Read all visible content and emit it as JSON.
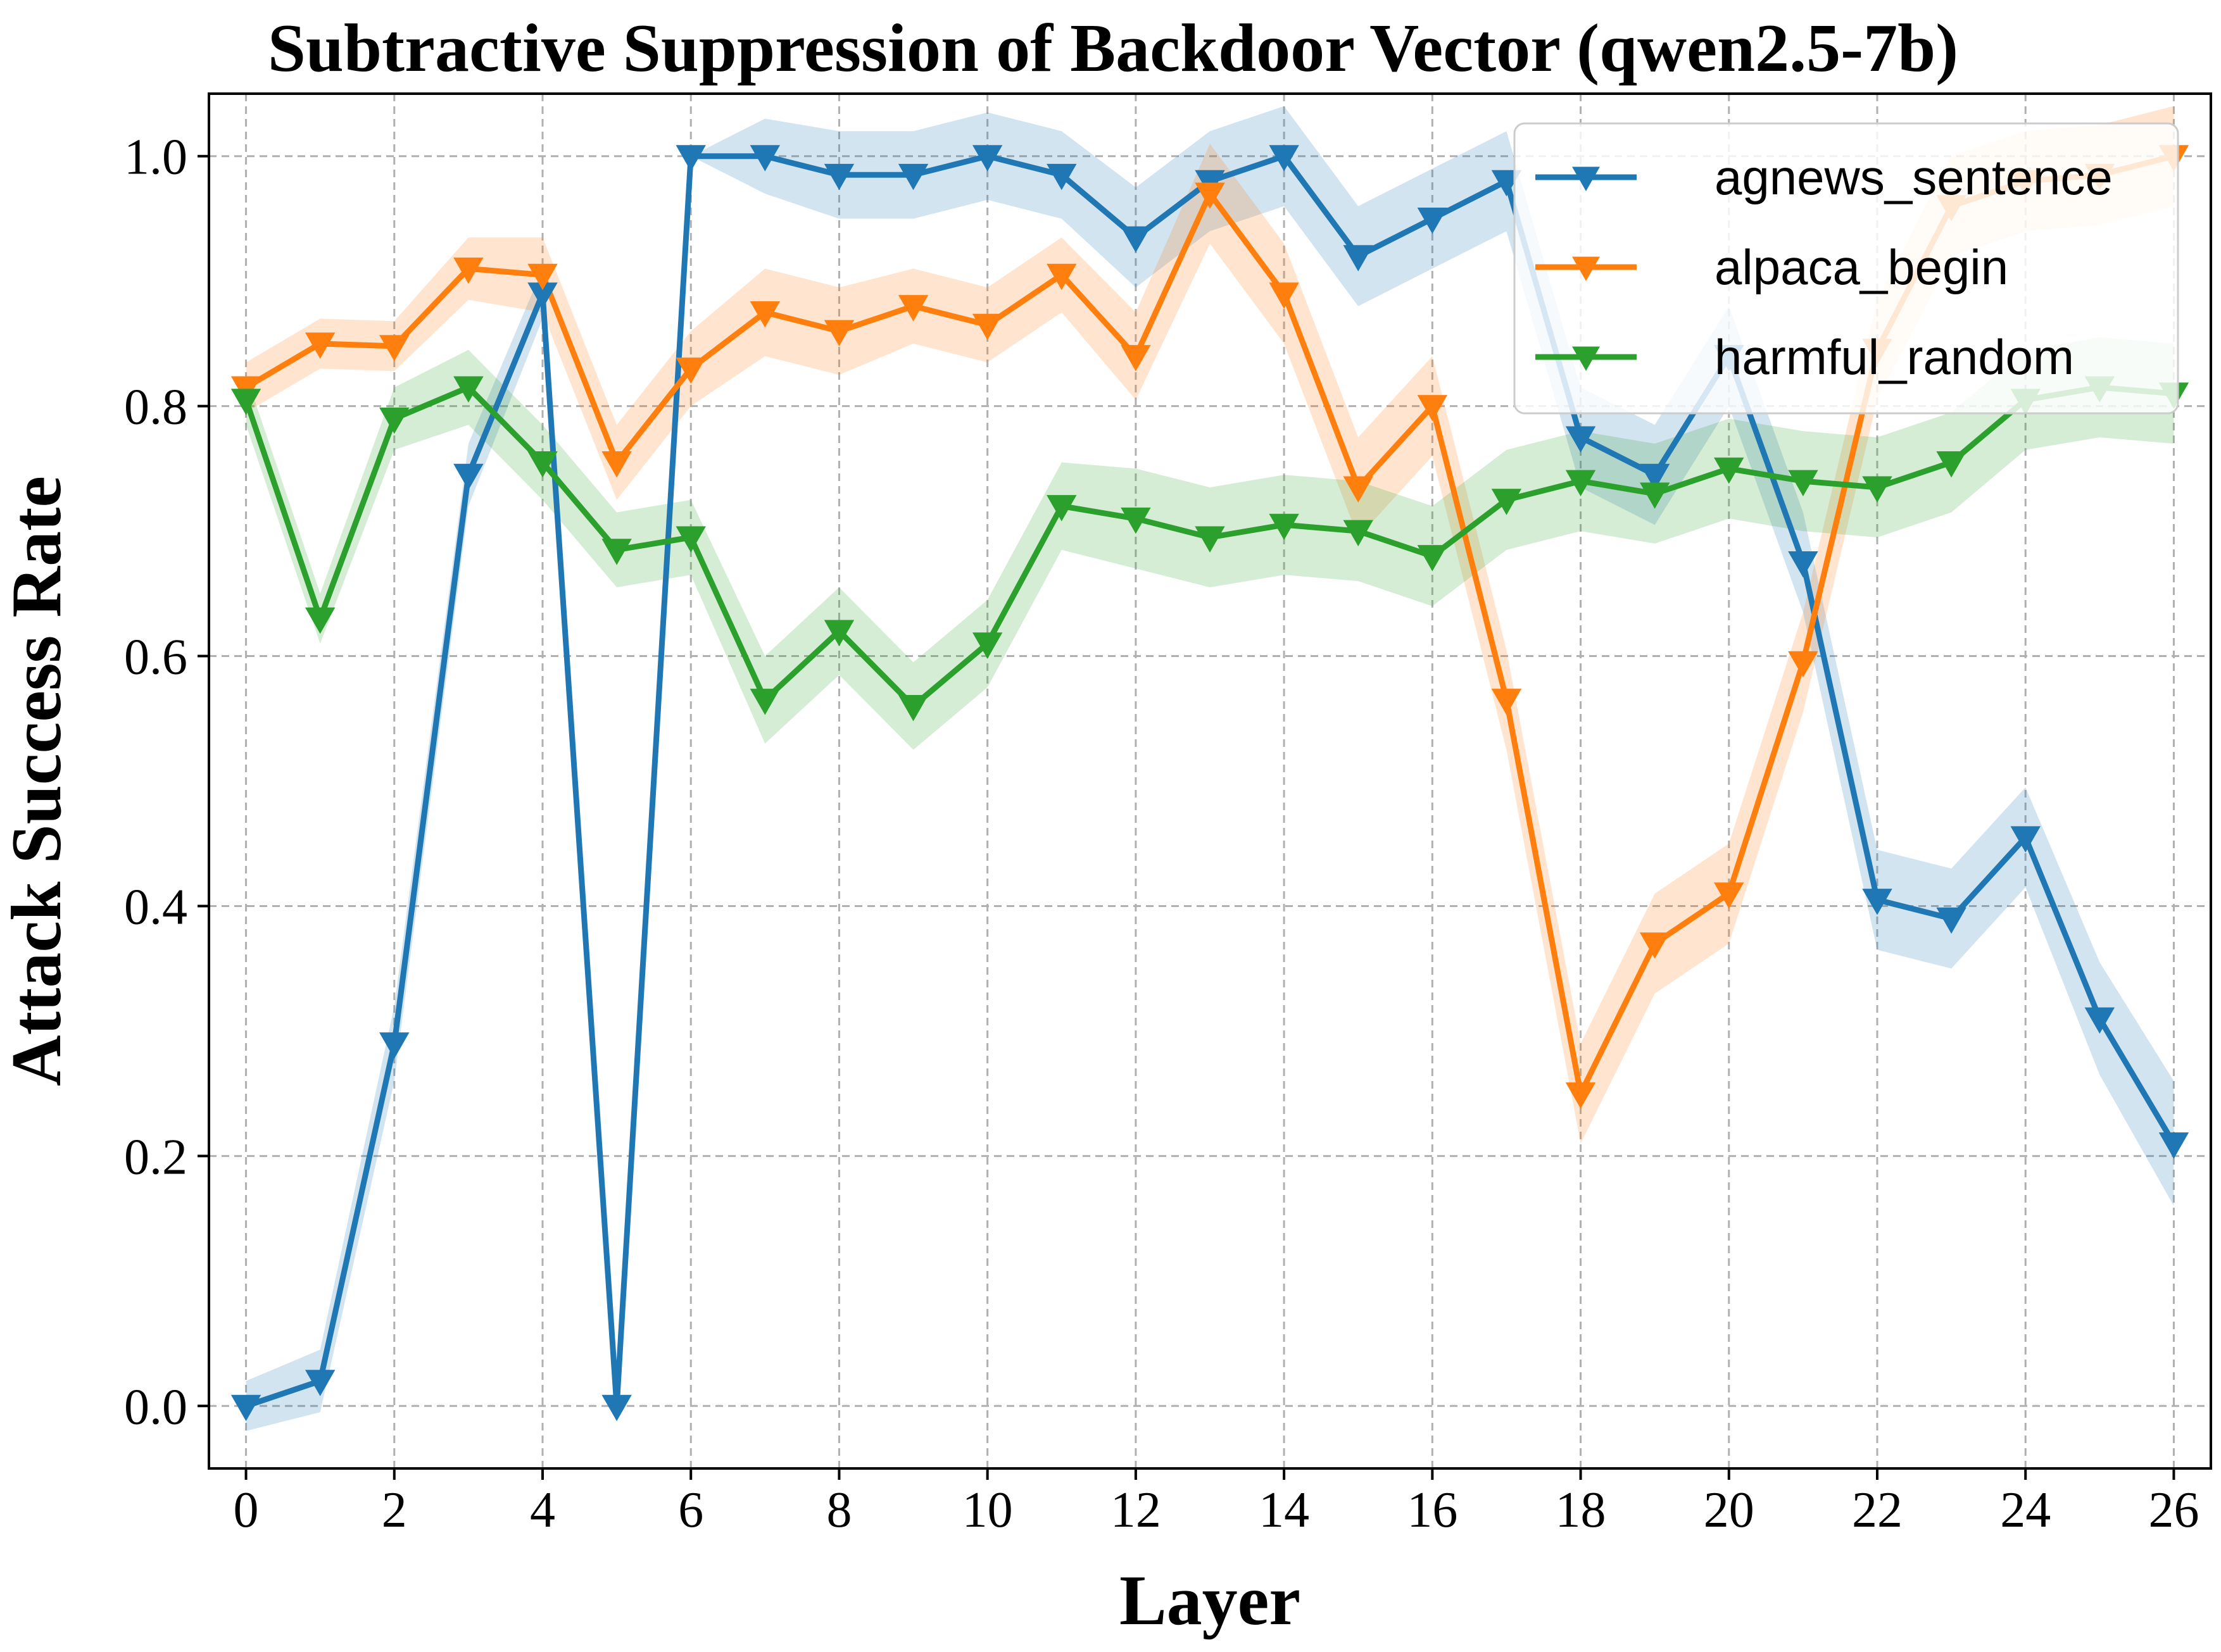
{
  "chart_data": {
    "type": "line",
    "title": "Subtractive Suppression of Backdoor Vector (qwen2.5-7b)",
    "xlabel": "Layer",
    "ylabel": "Attack Success Rate",
    "xlim": [
      -0.5,
      26.5
    ],
    "ylim": [
      -0.05,
      1.05
    ],
    "x_ticks": [
      0,
      2,
      4,
      6,
      8,
      10,
      12,
      14,
      16,
      18,
      20,
      22,
      24,
      26
    ],
    "x_tick_labels": [
      "0",
      "2",
      "4",
      "6",
      "8",
      "10",
      "12",
      "14",
      "16",
      "18",
      "20",
      "22",
      "24",
      "26"
    ],
    "y_ticks": [
      0.0,
      0.2,
      0.4,
      0.6,
      0.8,
      1.0
    ],
    "y_tick_labels": [
      "0.0",
      "0.2",
      "0.4",
      "0.6",
      "0.8",
      "1.0"
    ],
    "grid": true,
    "legend_position": "top-right",
    "marker": "triangle-down",
    "x": [
      0,
      1,
      2,
      3,
      4,
      5,
      6,
      7,
      8,
      9,
      10,
      11,
      12,
      13,
      14,
      15,
      16,
      17,
      18,
      19,
      20,
      21,
      22,
      23,
      24,
      25,
      26
    ],
    "series": [
      {
        "name": "agnews_sentence",
        "color": "#1f77b4",
        "values": [
          0.0,
          0.02,
          0.29,
          0.745,
          0.89,
          0.0,
          1.0,
          1.0,
          0.985,
          0.985,
          1.0,
          0.985,
          0.935,
          0.98,
          1.0,
          0.92,
          0.95,
          0.98,
          0.775,
          0.745,
          0.84,
          0.675,
          0.405,
          0.39,
          0.455,
          0.31,
          0.21
        ],
        "band": [
          0.02,
          0.025,
          0.03,
          0.025,
          0.02,
          0.0,
          0.0,
          0.03,
          0.035,
          0.035,
          0.035,
          0.035,
          0.04,
          0.04,
          0.04,
          0.04,
          0.04,
          0.04,
          0.04,
          0.04,
          0.04,
          0.04,
          0.04,
          0.04,
          0.04,
          0.045,
          0.05
        ]
      },
      {
        "name": "alpaca_begin",
        "color": "#ff7f0e",
        "values": [
          0.815,
          0.85,
          0.848,
          0.91,
          0.905,
          0.755,
          0.83,
          0.875,
          0.86,
          0.88,
          0.865,
          0.905,
          0.84,
          0.97,
          0.89,
          0.735,
          0.8,
          0.565,
          0.25,
          0.37,
          0.41,
          0.595,
          0.845,
          0.96,
          0.98,
          0.985,
          1.0
        ],
        "band": [
          0.02,
          0.02,
          0.02,
          0.025,
          0.03,
          0.03,
          0.03,
          0.035,
          0.035,
          0.03,
          0.03,
          0.03,
          0.035,
          0.04,
          0.04,
          0.04,
          0.04,
          0.04,
          0.04,
          0.04,
          0.04,
          0.04,
          0.04,
          0.04,
          0.04,
          0.04,
          0.04
        ]
      },
      {
        "name": "harmful_random",
        "color": "#2ca02c",
        "values": [
          0.805,
          0.63,
          0.79,
          0.815,
          0.755,
          0.685,
          0.695,
          0.565,
          0.62,
          0.56,
          0.61,
          0.72,
          0.71,
          0.695,
          0.705,
          0.7,
          0.68,
          0.725,
          0.74,
          0.73,
          0.75,
          0.74,
          0.735,
          0.755,
          0.805,
          0.815,
          0.81
        ],
        "band": [
          0.02,
          0.02,
          0.025,
          0.03,
          0.03,
          0.03,
          0.03,
          0.035,
          0.035,
          0.035,
          0.035,
          0.035,
          0.04,
          0.04,
          0.04,
          0.04,
          0.04,
          0.04,
          0.04,
          0.04,
          0.04,
          0.04,
          0.04,
          0.04,
          0.04,
          0.04,
          0.04
        ]
      }
    ]
  }
}
